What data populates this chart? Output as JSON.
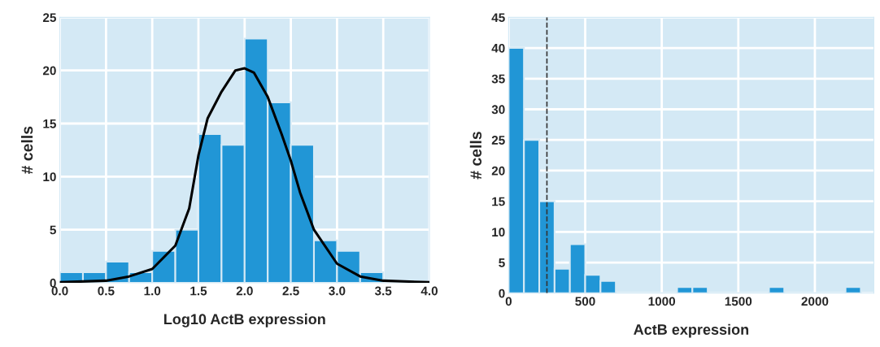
{
  "chart_data": [
    {
      "type": "histogram",
      "xlabel": "Log10 ActB expression",
      "ylabel": "# cells",
      "bins": [
        0,
        0.25,
        0.5,
        0.75,
        1.0,
        1.25,
        1.5,
        1.75,
        2.0,
        2.25,
        2.5,
        2.75,
        3.0,
        3.25,
        3.5
      ],
      "values": [
        1,
        1,
        2,
        1,
        3,
        5,
        14,
        13,
        23,
        17,
        13,
        4,
        3,
        1
      ],
      "color": "#2196d6",
      "series": [
        {
          "type": "line",
          "color": "#000000",
          "x": [
            0,
            0.5,
            0.75,
            1.0,
            1.25,
            1.4,
            1.5,
            1.6,
            1.75,
            1.9,
            2.0,
            2.1,
            2.25,
            2.4,
            2.5,
            2.6,
            2.75,
            3.0,
            3.25,
            3.5,
            4.0
          ],
          "values": [
            0.05,
            0.2,
            0.6,
            1.3,
            3.5,
            7,
            12,
            15.5,
            18,
            20,
            20.2,
            19.8,
            17.5,
            14,
            11.5,
            8.5,
            5,
            1.8,
            0.6,
            0.2,
            0.05
          ]
        }
      ],
      "xlim": [
        0,
        4
      ],
      "xticks": [
        {
          "value": 0,
          "label": "0.0"
        },
        0.5,
        {
          "value": 1,
          "label": "1.0"
        },
        1.5,
        {
          "value": 2,
          "label": "2.0"
        },
        2.5,
        {
          "value": 3,
          "label": "3.0"
        },
        3.5,
        {
          "value": 4,
          "label": "4.0"
        }
      ],
      "ylim": [
        0,
        25
      ],
      "yticks": [
        0,
        5,
        10,
        15,
        20,
        25
      ],
      "grid": true
    },
    {
      "type": "histogram",
      "xlabel": "ActB expression",
      "ylabel": "# cells",
      "bins": [
        0,
        100,
        200,
        300,
        400,
        500,
        600,
        700,
        800,
        900,
        1000,
        1100,
        1200,
        1300,
        1400,
        1500,
        1600,
        1700,
        1800,
        1900,
        2000,
        2100,
        2200,
        2300
      ],
      "values": [
        40,
        25,
        15,
        4,
        8,
        3,
        2,
        0,
        0,
        0,
        0,
        1,
        1,
        0,
        0,
        0,
        0,
        1,
        0,
        0,
        0,
        0,
        1
      ],
      "color": "#2196d6",
      "ref_lines": [
        {
          "axis": "x",
          "value": 250,
          "color": "#333333",
          "line_style": "dashed"
        }
      ],
      "xlim": [
        0,
        2385
      ],
      "xticks": [
        0,
        500,
        1000,
        1500,
        2000
      ],
      "ylim": [
        0,
        45
      ],
      "yticks": [
        0,
        5,
        10,
        15,
        20,
        25,
        30,
        35,
        40,
        45
      ],
      "grid": true
    }
  ]
}
